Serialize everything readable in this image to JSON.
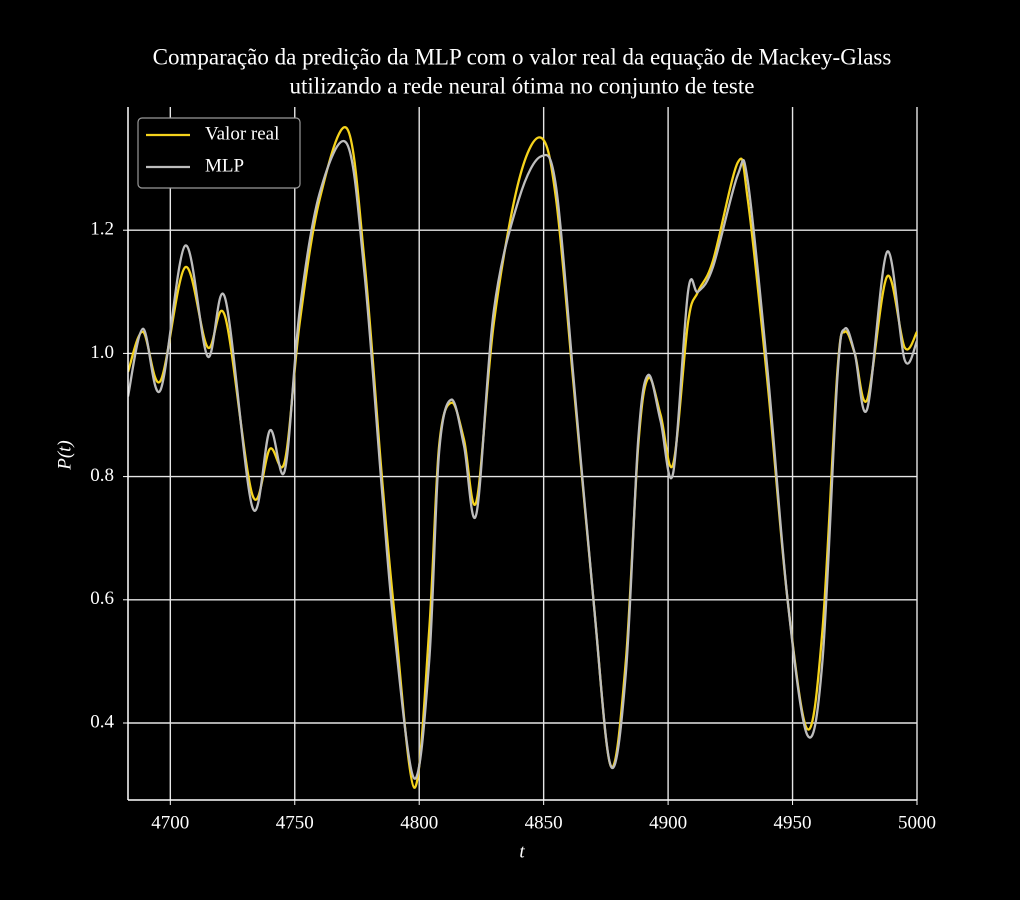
{
  "chart_data": {
    "type": "line",
    "title": [
      "Comparação da predição da MLP com o valor real da equação de Mackey-Glass",
      "utilizando a rede neural ótima no conjunto de teste"
    ],
    "xlabel": "t",
    "ylabel": "P(t)",
    "x": [
      4683,
      4689,
      4696,
      4706,
      4715,
      4722,
      4733,
      4740,
      4746,
      4752,
      4760,
      4771,
      4778,
      4785,
      4790,
      4798,
      4804,
      4808,
      4813,
      4818,
      4823,
      4830,
      4840,
      4849,
      4855,
      4862,
      4870,
      4877,
      4883,
      4888,
      4892,
      4897,
      4902,
      4908,
      4912,
      4918,
      4928,
      4932,
      4940,
      4948,
      4956,
      4962,
      4968,
      4971,
      4975,
      4980,
      4988,
      4995,
      5000
    ],
    "series": [
      {
        "name": "Valor real",
        "color": "#f5d31c",
        "values": [
          0.97,
          1.035,
          0.955,
          1.14,
          1.01,
          1.06,
          0.77,
          0.845,
          0.825,
          1.05,
          1.25,
          1.365,
          1.15,
          0.8,
          0.58,
          0.295,
          0.55,
          0.85,
          0.92,
          0.86,
          0.76,
          1.05,
          1.28,
          1.35,
          1.25,
          0.95,
          0.6,
          0.33,
          0.5,
          0.85,
          0.96,
          0.9,
          0.82,
          1.05,
          1.1,
          1.15,
          1.31,
          1.25,
          0.95,
          0.6,
          0.39,
          0.55,
          0.97,
          1.035,
          1.0,
          0.925,
          1.125,
          1.01,
          1.035
        ]
      },
      {
        "name": "MLP",
        "color": "#bdbdbd",
        "values": [
          0.93,
          1.04,
          0.94,
          1.175,
          0.995,
          1.09,
          0.75,
          0.875,
          0.81,
          1.07,
          1.26,
          1.34,
          1.13,
          0.78,
          0.55,
          0.31,
          0.5,
          0.84,
          0.925,
          0.85,
          0.74,
          1.07,
          1.25,
          1.32,
          1.27,
          0.96,
          0.6,
          0.33,
          0.48,
          0.86,
          0.965,
          0.89,
          0.805,
          1.1,
          1.1,
          1.14,
          1.29,
          1.28,
          0.97,
          0.6,
          0.38,
          0.5,
          0.96,
          1.04,
          1.0,
          0.91,
          1.165,
          0.99,
          1.02
        ]
      }
    ],
    "xlim": [
      4683,
      5000
    ],
    "xticks": [
      4700,
      4750,
      4800,
      4850,
      4900,
      4950,
      5000
    ],
    "ylim": [
      0.275,
      1.4
    ],
    "yticks": [
      0.4,
      0.6,
      0.8,
      {
        "value": 1,
        "label": "1.0"
      },
      1.2
    ],
    "grid": true,
    "legend": "upper left"
  }
}
